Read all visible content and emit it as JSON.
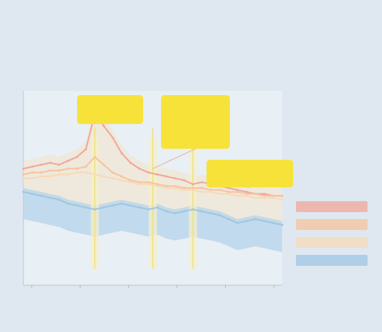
{
  "title": "",
  "subtitle": "",
  "source": "",
  "colors": {
    "background": "#dfe8f0",
    "plot_bg": "#e8eff5",
    "callout": "#f7e23a",
    "band_blue": "#b5d3ea",
    "band_light": "#f3e3c6"
  },
  "chart_data": {
    "type": "line",
    "x": [
      1955,
      1957,
      1959,
      1961,
      1963,
      1965,
      1967,
      1969,
      1971,
      1973,
      1975,
      1977,
      1979,
      1981,
      1983,
      1985,
      1987,
      1989,
      1991,
      1993,
      1995,
      1997,
      1999,
      2001,
      2003,
      2005,
      2007,
      2009,
      2011,
      2013
    ],
    "xlim": [
      1955,
      2013
    ],
    "ylim": [
      0,
      100
    ],
    "grid": false,
    "legend_position": "right",
    "x_ticks": [
      "",
      "",
      "",
      "",
      "",
      ""
    ],
    "y_ticks": [
      "",
      "",
      "",
      "",
      "",
      ""
    ],
    "series": [
      {
        "name": "",
        "color": "#f2a79b",
        "values": [
          60,
          61,
          62,
          63,
          62,
          64,
          66,
          70,
          88,
          82,
          76,
          68,
          63,
          60,
          58,
          57,
          56,
          55,
          54,
          52,
          53,
          52,
          51,
          50,
          49,
          48,
          47,
          47,
          46,
          46
        ]
      },
      {
        "name": "",
        "color": "#f6c39e",
        "values": [
          57,
          58,
          58,
          59,
          59,
          60,
          60,
          61,
          66,
          62,
          58,
          56,
          54,
          53,
          53,
          52,
          51,
          51,
          50,
          50,
          50,
          49,
          49,
          48,
          48,
          47,
          47,
          46,
          46,
          46
        ]
      },
      {
        "name": "",
        "color": "#f8d9b8",
        "values": [
          55,
          55,
          56,
          56,
          57,
          57,
          58,
          58,
          57,
          56,
          55,
          54,
          53,
          52,
          52,
          51,
          50,
          50,
          49,
          49,
          48,
          48,
          47,
          47,
          46,
          46,
          45,
          45,
          45,
          44
        ]
      },
      {
        "name": "",
        "color": "#9fc6e4",
        "values": [
          48,
          47,
          46,
          45,
          44,
          42,
          41,
          40,
          39,
          40,
          41,
          42,
          41,
          40,
          39,
          40,
          38,
          37,
          38,
          39,
          38,
          37,
          36,
          34,
          32,
          33,
          34,
          33,
          32,
          31
        ]
      }
    ],
    "highlights": [
      1971,
      1984,
      1993
    ],
    "callouts": [
      {
        "x": 1971,
        "lines": [
          "",
          ""
        ]
      },
      {
        "x": 1984,
        "lines": [
          "",
          "",
          "",
          ""
        ]
      },
      {
        "x": 1995,
        "lines": [
          "",
          ""
        ]
      }
    ],
    "legend": [
      "",
      "",
      "",
      ""
    ]
  }
}
